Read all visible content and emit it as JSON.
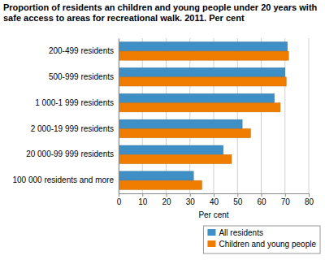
{
  "chart_data": {
    "type": "bar",
    "orientation": "horizontal",
    "title": "Proportion of residents an children and young people under 20 years with safe access to areas for recreational walk. 2011. Per cent",
    "x_label": "Per cent",
    "categories": [
      "200-499 residents",
      "500-999 residents",
      "1 000-1 999 residents",
      "2 000-19 999 residents",
      "20 000-99 999 residents",
      "100 000 residents and more"
    ],
    "series": [
      {
        "name": "All residents",
        "color": "#3d8fc6",
        "values": [
          71,
          70,
          65.5,
          52,
          44,
          31.5
        ]
      },
      {
        "name": "Children and young people",
        "color": "#f07d00",
        "values": [
          71.5,
          70.5,
          68,
          55.5,
          47.5,
          35
        ]
      }
    ],
    "xlim": [
      0,
      80
    ],
    "xticks": [
      0,
      10,
      20,
      30,
      40,
      50,
      60,
      70,
      80
    ],
    "grid": true,
    "legend": "bottom-right"
  }
}
